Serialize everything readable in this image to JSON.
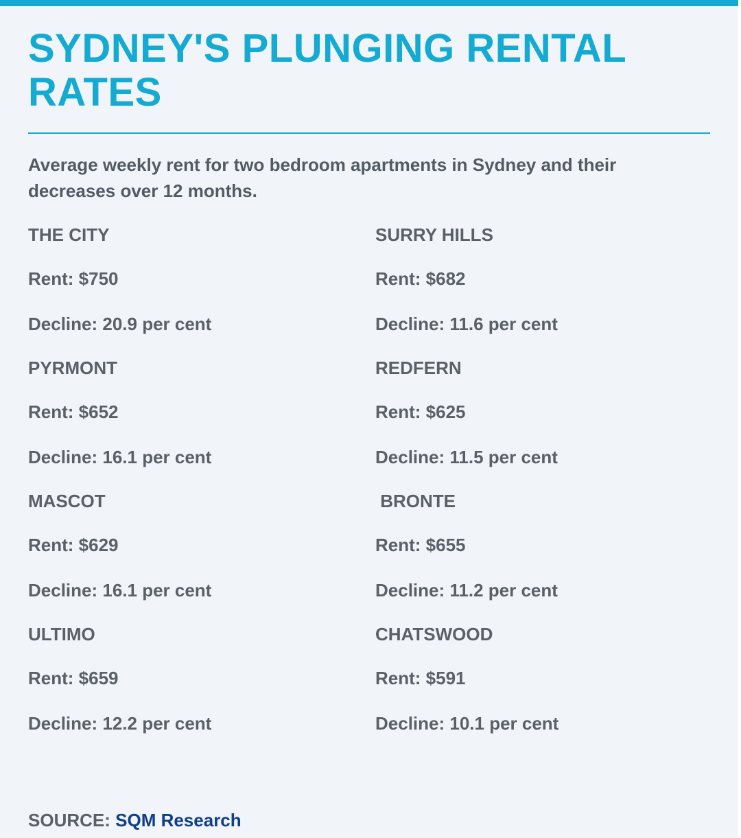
{
  "title": "SYDNEY'S PLUNGING RENTAL RATES",
  "subtitle": "Average weekly rent for two bedroom apartments in Sydney and their decreases over 12 months.",
  "columns": [
    {
      "suburbs": [
        {
          "name": "THE CITY",
          "rent": "Rent: $750",
          "decline": "Decline: 20.9 per cent"
        },
        {
          "name": "PYRMONT",
          "rent": "Rent: $652",
          "decline": "Decline: 16.1 per cent"
        },
        {
          "name": "MASCOT",
          "rent": "Rent: $629",
          "decline": "Decline: 16.1 per cent"
        },
        {
          "name": "ULTIMO",
          "rent": "Rent: $659",
          "decline": "Decline: 12.2 per cent"
        }
      ]
    },
    {
      "suburbs": [
        {
          "name": "SURRY HILLS",
          "rent": "Rent: $682",
          "decline": "Decline: 11.6 per cent"
        },
        {
          "name": "REDFERN",
          "rent": "Rent: $625",
          "decline": "Decline: 11.5 per cent"
        },
        {
          "name": " BRONTE",
          "rent": "Rent: $655",
          "decline": "Decline: 11.2 per cent"
        },
        {
          "name": "CHATSWOOD",
          "rent": "Rent: $591",
          "decline": "Decline: 10.1 per cent"
        }
      ]
    }
  ],
  "source": {
    "label": "SOURCE: ",
    "link_text": "SQM Research"
  },
  "colors": {
    "accent": "#14aad2",
    "text": "#5a6068",
    "link": "#103f86",
    "background": "#f1f5f9"
  }
}
